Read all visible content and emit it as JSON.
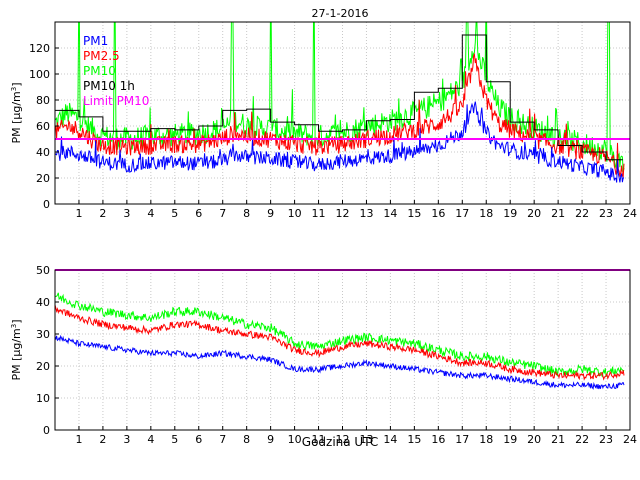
{
  "chart_data": [
    {
      "type": "line",
      "title": "27-1-2016",
      "xlabel": "",
      "ylabel_main": "PM [µg/m",
      "ylabel_sup": "3",
      "ylabel_close": "]",
      "xlim": [
        0,
        24
      ],
      "ylim": [
        0,
        140
      ],
      "xticks": [
        1,
        2,
        3,
        4,
        5,
        6,
        7,
        8,
        9,
        10,
        11,
        12,
        13,
        14,
        15,
        16,
        17,
        18,
        19,
        20,
        21,
        22,
        23,
        24
      ],
      "yticks": [
        0,
        20,
        40,
        60,
        80,
        100,
        120
      ],
      "grid": true,
      "legend_position": "top-left",
      "colors": {
        "pm1": "#0000ff",
        "pm25": "#ff0000",
        "pm10": "#00ff00",
        "pm10_1h": "#000000",
        "limit": "#ff00ff"
      },
      "legend": [
        "PM1",
        "PM2.5",
        "PM10",
        "PM10 1h",
        "Limit PM10"
      ],
      "limit": 50,
      "pm1_anchors": [
        [
          0,
          38
        ],
        [
          0.5,
          40
        ],
        [
          1,
          38
        ],
        [
          1.5,
          35
        ],
        [
          2,
          32
        ],
        [
          3,
          30
        ],
        [
          4,
          31
        ],
        [
          5,
          32
        ],
        [
          6,
          31
        ],
        [
          7,
          33
        ],
        [
          7.5,
          38
        ],
        [
          8,
          36
        ],
        [
          9,
          35
        ],
        [
          10,
          32
        ],
        [
          11,
          30
        ],
        [
          12,
          33
        ],
        [
          13,
          35
        ],
        [
          14,
          37
        ],
        [
          15,
          40
        ],
        [
          16,
          45
        ],
        [
          17,
          55
        ],
        [
          17.5,
          75
        ],
        [
          18,
          55
        ],
        [
          18.5,
          45
        ],
        [
          19,
          42
        ],
        [
          20,
          36
        ],
        [
          21,
          33
        ],
        [
          22,
          28
        ],
        [
          23,
          25
        ],
        [
          23.5,
          20
        ]
      ],
      "pm25_anchors": [
        [
          0,
          55
        ],
        [
          0.5,
          60
        ],
        [
          1,
          57
        ],
        [
          1.5,
          50
        ],
        [
          2,
          45
        ],
        [
          3,
          44
        ],
        [
          4,
          45
        ],
        [
          5,
          46
        ],
        [
          6,
          46
        ],
        [
          7,
          50
        ],
        [
          7.5,
          55
        ],
        [
          8,
          52
        ],
        [
          9,
          50
        ],
        [
          10,
          46
        ],
        [
          11,
          44
        ],
        [
          12,
          46
        ],
        [
          13,
          50
        ],
        [
          14,
          53
        ],
        [
          15,
          57
        ],
        [
          16,
          62
        ],
        [
          17,
          75
        ],
        [
          17.5,
          110
        ],
        [
          18,
          80
        ],
        [
          18.5,
          62
        ],
        [
          19,
          57
        ],
        [
          20,
          50
        ],
        [
          21,
          45
        ],
        [
          22,
          40
        ],
        [
          23,
          36
        ],
        [
          23.5,
          28
        ]
      ],
      "pm10_anchors": [
        [
          0,
          62
        ],
        [
          0.5,
          70
        ],
        [
          1,
          66
        ],
        [
          1.5,
          58
        ],
        [
          2,
          52
        ],
        [
          3,
          50
        ],
        [
          4,
          52
        ],
        [
          5,
          53
        ],
        [
          6,
          54
        ],
        [
          7,
          58
        ],
        [
          7.5,
          65
        ],
        [
          8,
          60
        ],
        [
          9,
          58
        ],
        [
          10,
          54
        ],
        [
          11,
          52
        ],
        [
          12,
          55
        ],
        [
          13,
          60
        ],
        [
          14,
          64
        ],
        [
          15,
          70
        ],
        [
          16,
          78
        ],
        [
          17,
          92
        ],
        [
          17.5,
          125
        ],
        [
          18,
          96
        ],
        [
          18.5,
          75
        ],
        [
          19,
          66
        ],
        [
          20,
          58
        ],
        [
          21,
          52
        ],
        [
          22,
          46
        ],
        [
          23,
          42
        ],
        [
          23.5,
          32
        ]
      ],
      "pm10_spikes": [
        [
          1.0,
          140
        ],
        [
          2.5,
          140
        ],
        [
          7.4,
          140
        ],
        [
          9.0,
          140
        ],
        [
          10.8,
          140
        ],
        [
          17.2,
          140
        ],
        [
          17.6,
          140
        ],
        [
          18.0,
          140
        ],
        [
          23.1,
          140
        ]
      ],
      "pm10_1h_steps": [
        [
          0,
          72
        ],
        [
          1,
          67
        ],
        [
          2,
          56
        ],
        [
          3,
          56
        ],
        [
          4,
          58
        ],
        [
          5,
          57
        ],
        [
          6,
          60
        ],
        [
          7,
          72
        ],
        [
          8,
          73
        ],
        [
          9,
          63
        ],
        [
          10,
          61
        ],
        [
          11,
          56
        ],
        [
          12,
          57
        ],
        [
          13,
          64
        ],
        [
          14,
          65
        ],
        [
          15,
          86
        ],
        [
          16,
          89
        ],
        [
          17,
          130
        ],
        [
          18,
          94
        ],
        [
          19,
          63
        ],
        [
          20,
          57
        ],
        [
          21,
          45
        ],
        [
          22,
          40
        ],
        [
          23,
          34
        ],
        [
          23.7,
          34
        ]
      ]
    },
    {
      "type": "line",
      "title": "",
      "xlabel": "Godzina UTC",
      "ylabel_main": "PM [µg/m",
      "ylabel_sup": "3",
      "ylabel_close": "]",
      "xlim": [
        0,
        24
      ],
      "ylim": [
        0,
        50
      ],
      "xticks": [
        1,
        2,
        3,
        4,
        5,
        6,
        7,
        8,
        9,
        10,
        11,
        12,
        13,
        14,
        15,
        16,
        17,
        18,
        19,
        20,
        21,
        22,
        23,
        24
      ],
      "yticks": [
        0,
        10,
        20,
        30,
        40,
        50
      ],
      "grid": true,
      "colors": {
        "pm1": "#0000ff",
        "pm25": "#ff0000",
        "pm10": "#00ff00",
        "limit": "#ff00ff"
      },
      "limit": 50,
      "pm1_anchors": [
        [
          0,
          29
        ],
        [
          1,
          27
        ],
        [
          2,
          26
        ],
        [
          3,
          25
        ],
        [
          4,
          24
        ],
        [
          5,
          24
        ],
        [
          6,
          23
        ],
        [
          7,
          24
        ],
        [
          8,
          23
        ],
        [
          9,
          22
        ],
        [
          10,
          19
        ],
        [
          11,
          19
        ],
        [
          12,
          20
        ],
        [
          13,
          21
        ],
        [
          14,
          20
        ],
        [
          15,
          19
        ],
        [
          16,
          18
        ],
        [
          17,
          17
        ],
        [
          18,
          17
        ],
        [
          19,
          16
        ],
        [
          20,
          15
        ],
        [
          21,
          14
        ],
        [
          22,
          14
        ],
        [
          23,
          13.5
        ],
        [
          23.7,
          14
        ]
      ],
      "pm25_anchors": [
        [
          0,
          38
        ],
        [
          1,
          35
        ],
        [
          2,
          33
        ],
        [
          3,
          32
        ],
        [
          4,
          31
        ],
        [
          5,
          33
        ],
        [
          6,
          33
        ],
        [
          7,
          31
        ],
        [
          8,
          30
        ],
        [
          9,
          29
        ],
        [
          10,
          25
        ],
        [
          11,
          24
        ],
        [
          12,
          26
        ],
        [
          13,
          27
        ],
        [
          14,
          26
        ],
        [
          15,
          25
        ],
        [
          16,
          23
        ],
        [
          17,
          21
        ],
        [
          18,
          21
        ],
        [
          19,
          19
        ],
        [
          20,
          18
        ],
        [
          21,
          17
        ],
        [
          22,
          17
        ],
        [
          23,
          17
        ],
        [
          23.7,
          18
        ]
      ],
      "pm10_anchors": [
        [
          0,
          42
        ],
        [
          1,
          39
        ],
        [
          2,
          37
        ],
        [
          3,
          36
        ],
        [
          4,
          35
        ],
        [
          5,
          37
        ],
        [
          6,
          37
        ],
        [
          7,
          35
        ],
        [
          8,
          33
        ],
        [
          9,
          32
        ],
        [
          10,
          27
        ],
        [
          11,
          26
        ],
        [
          12,
          28
        ],
        [
          13,
          29
        ],
        [
          14,
          28
        ],
        [
          15,
          27
        ],
        [
          16,
          25
        ],
        [
          17,
          23
        ],
        [
          18,
          23
        ],
        [
          19,
          21
        ],
        [
          20,
          20
        ],
        [
          21,
          18
        ],
        [
          22,
          19
        ],
        [
          23,
          18
        ],
        [
          23.7,
          19
        ]
      ]
    }
  ]
}
